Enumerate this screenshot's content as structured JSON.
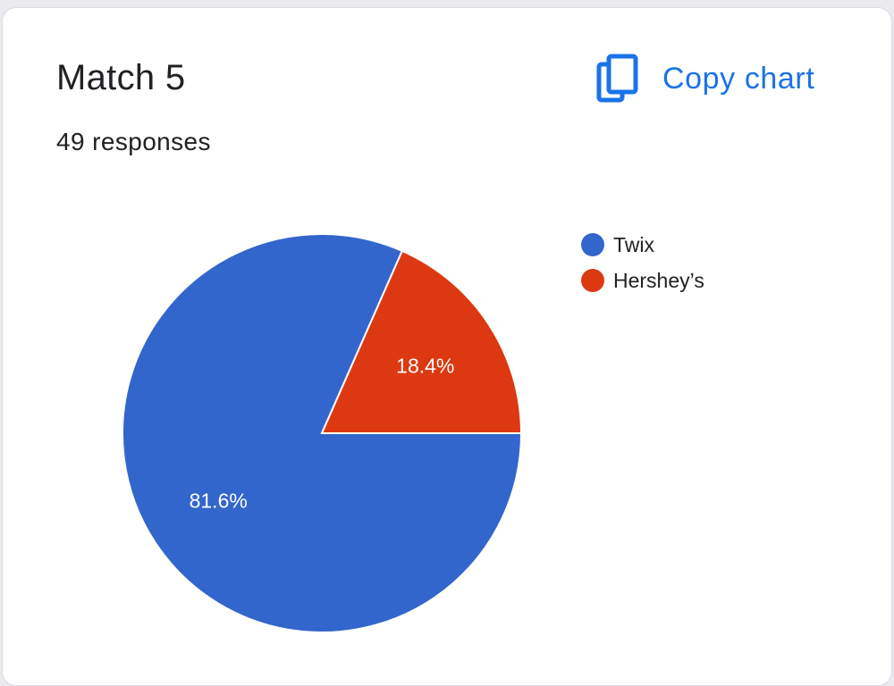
{
  "card": {
    "title": "Match 5",
    "responses": "49 responses",
    "copy_label": "Copy chart",
    "copy_icon": "copy-icon"
  },
  "chart_data": {
    "type": "pie",
    "categories": [
      "Twix",
      "Hershey’s"
    ],
    "values": [
      81.6,
      18.4
    ],
    "labels": [
      "81.6%",
      "18.4%"
    ],
    "colors": [
      "#3366cc",
      "#dc3912"
    ],
    "legend_position": "right"
  }
}
